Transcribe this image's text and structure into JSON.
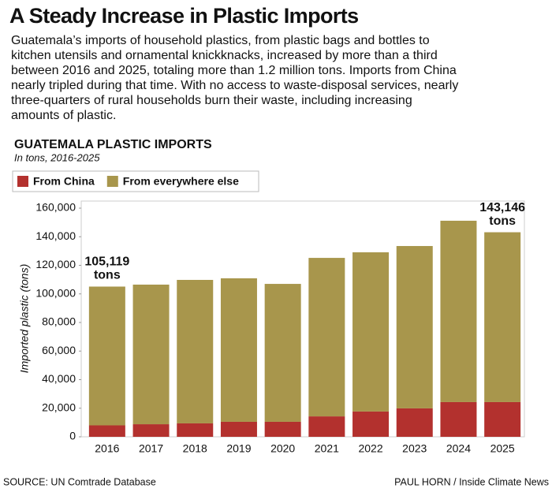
{
  "chart_data": {
    "type": "stacked_bar",
    "title": "A Steady Increase in Plastic Imports",
    "description": [
      "Guatemala’s imports of household plastics, from plastic bags and bottles to",
      "kitchen utensils and ornamental knickknacks, increased by more than a third",
      "between 2016 and 2025, totaling more than 1.2 million tons. Imports from China",
      "nearly tripled during that time. With no access to waste-disposal services, nearly",
      "three-quarters of rural households burn their waste, including increasing",
      "amounts of plastic."
    ],
    "chart_title": "GUATEMALA PLASTIC IMPORTS",
    "subtitle": "In tons, 2016-2025",
    "y_label": "Imported plastic (tons)",
    "categories": [
      "2016",
      "2017",
      "2018",
      "2019",
      "2020",
      "2021",
      "2022",
      "2023",
      "2024",
      "2025"
    ],
    "series": [
      {
        "name": "From China",
        "color": "#b3312e",
        "values": [
          8000,
          8800,
          9400,
          10500,
          10500,
          14300,
          17700,
          19900,
          24300,
          24300
        ]
      },
      {
        "name": "From everywhere else",
        "color": "#a8964c",
        "values": [
          97119,
          97700,
          100400,
          100400,
          96500,
          110900,
          111400,
          113600,
          126900,
          118846
        ]
      }
    ],
    "ylim": [
      0,
      160000
    ],
    "yticks": [
      0,
      {
        "value": 20000,
        "label": "20,000"
      },
      {
        "value": 40000,
        "label": "40,000"
      },
      {
        "value": 60000,
        "label": "60,000"
      },
      {
        "value": 80000,
        "label": "80,000"
      },
      {
        "value": 100000,
        "label": "100,000"
      },
      {
        "value": 120000,
        "label": "120,000"
      },
      {
        "value": 140000,
        "label": "140,000"
      },
      {
        "value": 160000,
        "label": "160,000"
      }
    ],
    "annotations": [
      {
        "category": "2016",
        "lines": [
          "105,119",
          "tons"
        ]
      },
      {
        "category": "2025",
        "lines": [
          "143,146",
          "tons"
        ]
      }
    ],
    "source": "SOURCE: UN Comtrade Database",
    "credit": "PAUL HORN / Inside Climate News"
  }
}
